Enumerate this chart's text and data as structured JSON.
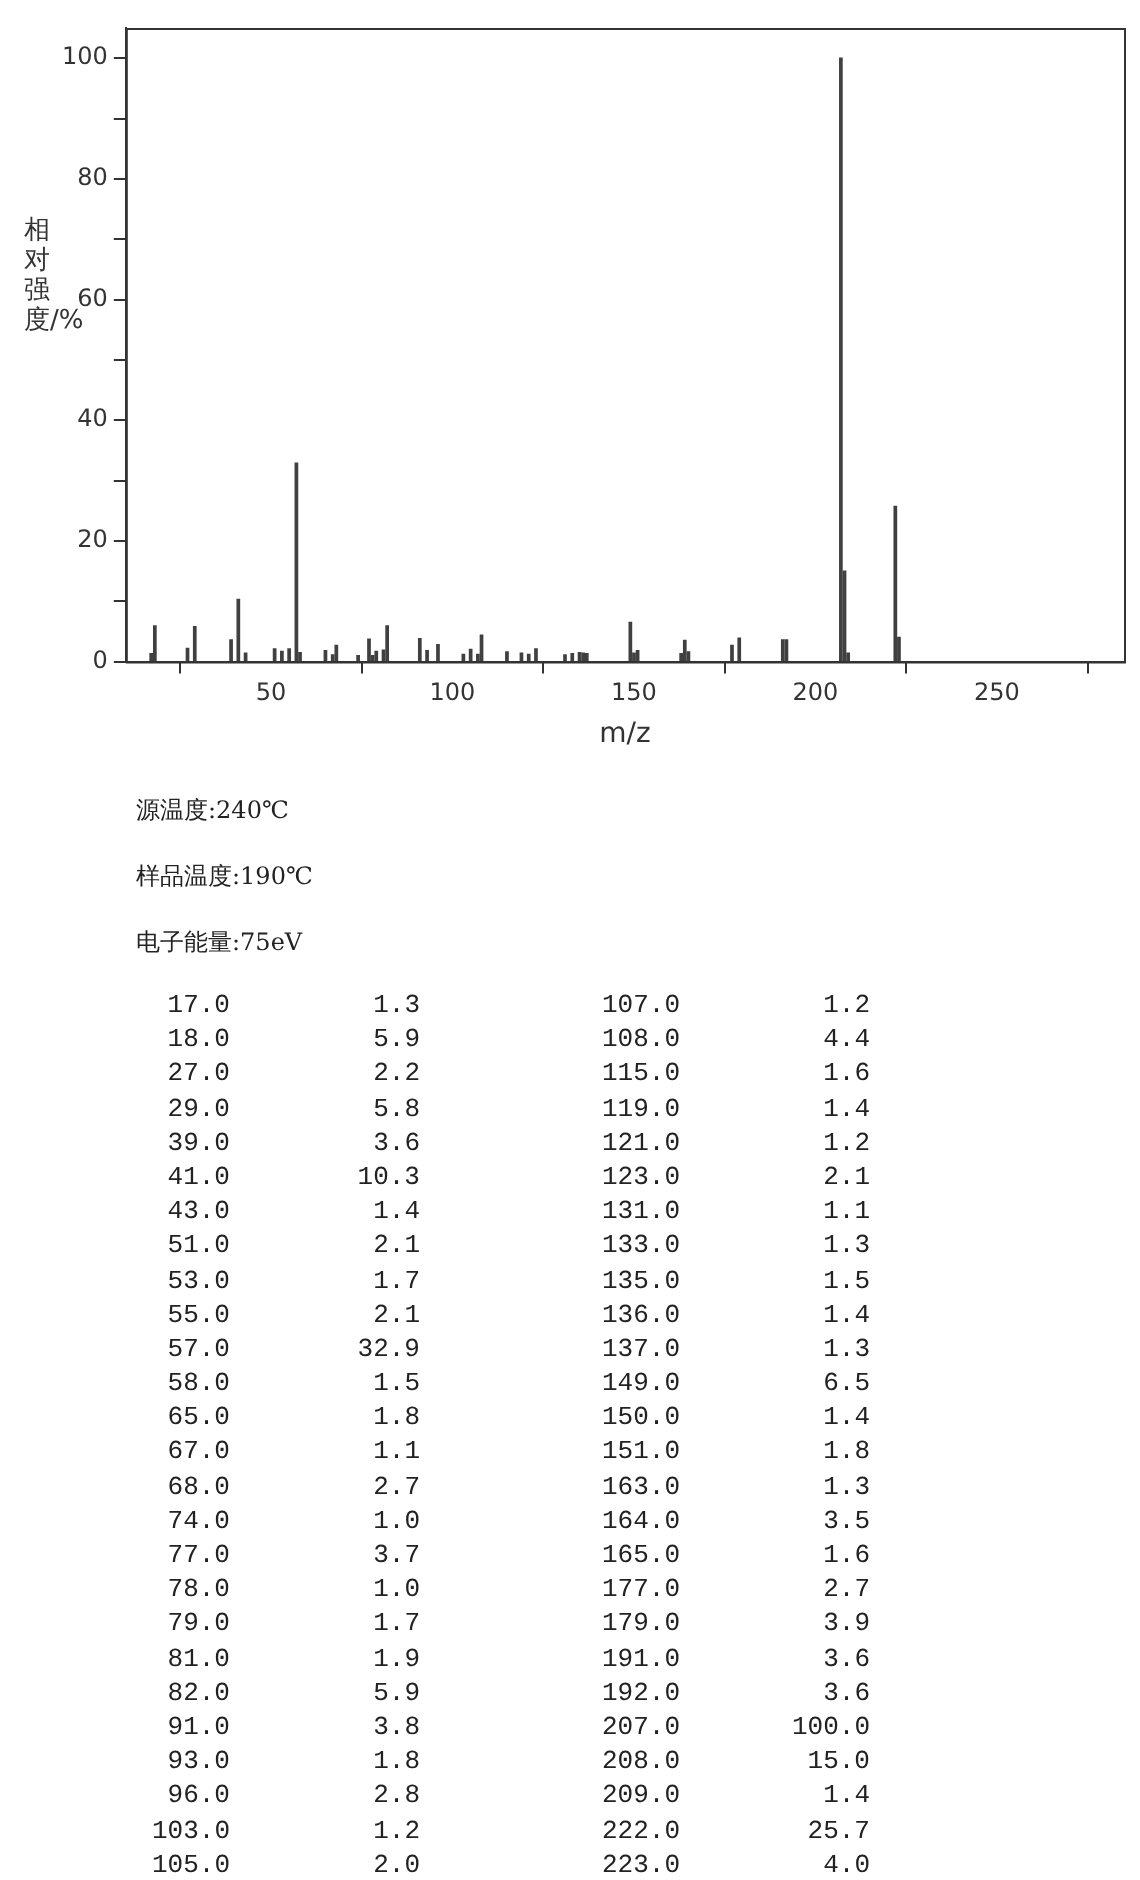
{
  "chart_data": {
    "type": "bar",
    "xlabel": "m/z",
    "ylabel": "相对强度/%",
    "x": [
      17,
      18,
      27,
      29,
      39,
      41,
      43,
      51,
      53,
      55,
      57,
      58,
      65,
      67,
      68,
      74,
      77,
      78,
      79,
      81,
      82,
      91,
      93,
      96,
      103,
      105,
      107,
      108,
      115,
      119,
      121,
      123,
      131,
      133,
      135,
      136,
      137,
      149,
      150,
      151,
      163,
      164,
      165,
      177,
      179,
      191,
      192,
      207,
      208,
      209,
      222,
      223
    ],
    "values": [
      1.3,
      5.9,
      2.2,
      5.8,
      3.6,
      10.3,
      1.4,
      2.1,
      1.7,
      2.1,
      32.9,
      1.5,
      1.8,
      1.1,
      2.7,
      1.0,
      3.7,
      1.0,
      1.7,
      1.9,
      5.9,
      3.8,
      1.8,
      2.8,
      1.2,
      2.0,
      1.2,
      4.4,
      1.6,
      1.4,
      1.2,
      2.1,
      1.1,
      1.3,
      1.5,
      1.4,
      1.3,
      6.5,
      1.4,
      1.8,
      1.3,
      3.5,
      1.6,
      2.7,
      3.9,
      3.6,
      3.6,
      100.0,
      15.0,
      1.4,
      25.7,
      4.0
    ],
    "color": "#404040",
    "xlim": [
      10,
      285
    ],
    "xticks": [
      50,
      100,
      150,
      200,
      250
    ],
    "ylim": [
      0,
      105
    ],
    "yticks": [
      0,
      {
        "value": 10,
        "label": null
      },
      20,
      {
        "value": 30,
        "label": null
      },
      40,
      {
        "value": 50,
        "label": null
      },
      60,
      {
        "value": 70,
        "label": null
      },
      80,
      {
        "value": 90,
        "label": null
      },
      100
    ],
    "grid": false,
    "legend": false,
    "annotations": [
      "源温度:240℃",
      "样品温度:190℃",
      "电子能量:75eV",
      "17.0",
      "1.3",
      "107.0",
      "1.2",
      "18.0",
      "5.9",
      "108.0",
      "4.4",
      "27.0",
      "2.2",
      "115.0",
      "1.6",
      "29.0",
      "5.8",
      "119.0",
      "1.4",
      "39.0",
      "3.6",
      "121.0",
      "1.2",
      "41.0",
      "10.3",
      "123.0",
      "2.1",
      "43.0",
      "1.4",
      "131.0",
      "1.1",
      "51.0",
      "2.1",
      "133.0",
      "1.3",
      "53.0",
      "1.7",
      "135.0",
      "1.5",
      "55.0",
      "2.1",
      "136.0",
      "1.4",
      "57.0",
      "32.9",
      "137.0",
      "1.3",
      "58.0",
      "1.5",
      "149.0",
      "6.5",
      "65.0",
      "1.8",
      "150.0",
      "1.4",
      "67.0",
      "1.1",
      "151.0",
      "1.8",
      "68.0",
      "2.7",
      "163.0",
      "1.3",
      "74.0",
      "1.0",
      "164.0",
      "3.5",
      "77.0",
      "3.7",
      "165.0",
      "1.6",
      "78.0",
      "1.0",
      "177.0",
      "2.7",
      "79.0",
      "1.7",
      "179.0",
      "3.9",
      "81.0",
      "1.9",
      "191.0",
      "3.6",
      "82.0",
      "5.9",
      "192.0",
      "3.6",
      "91.0",
      "3.8",
      "207.0",
      "100.0",
      "93.0",
      "1.8",
      "208.0",
      "15.0",
      "96.0",
      "2.8",
      "209.0",
      "1.4",
      "103.0",
      "1.2",
      "222.0",
      "25.7",
      "105.0",
      "2.0",
      "223.0",
      "4.0"
    ]
  }
}
